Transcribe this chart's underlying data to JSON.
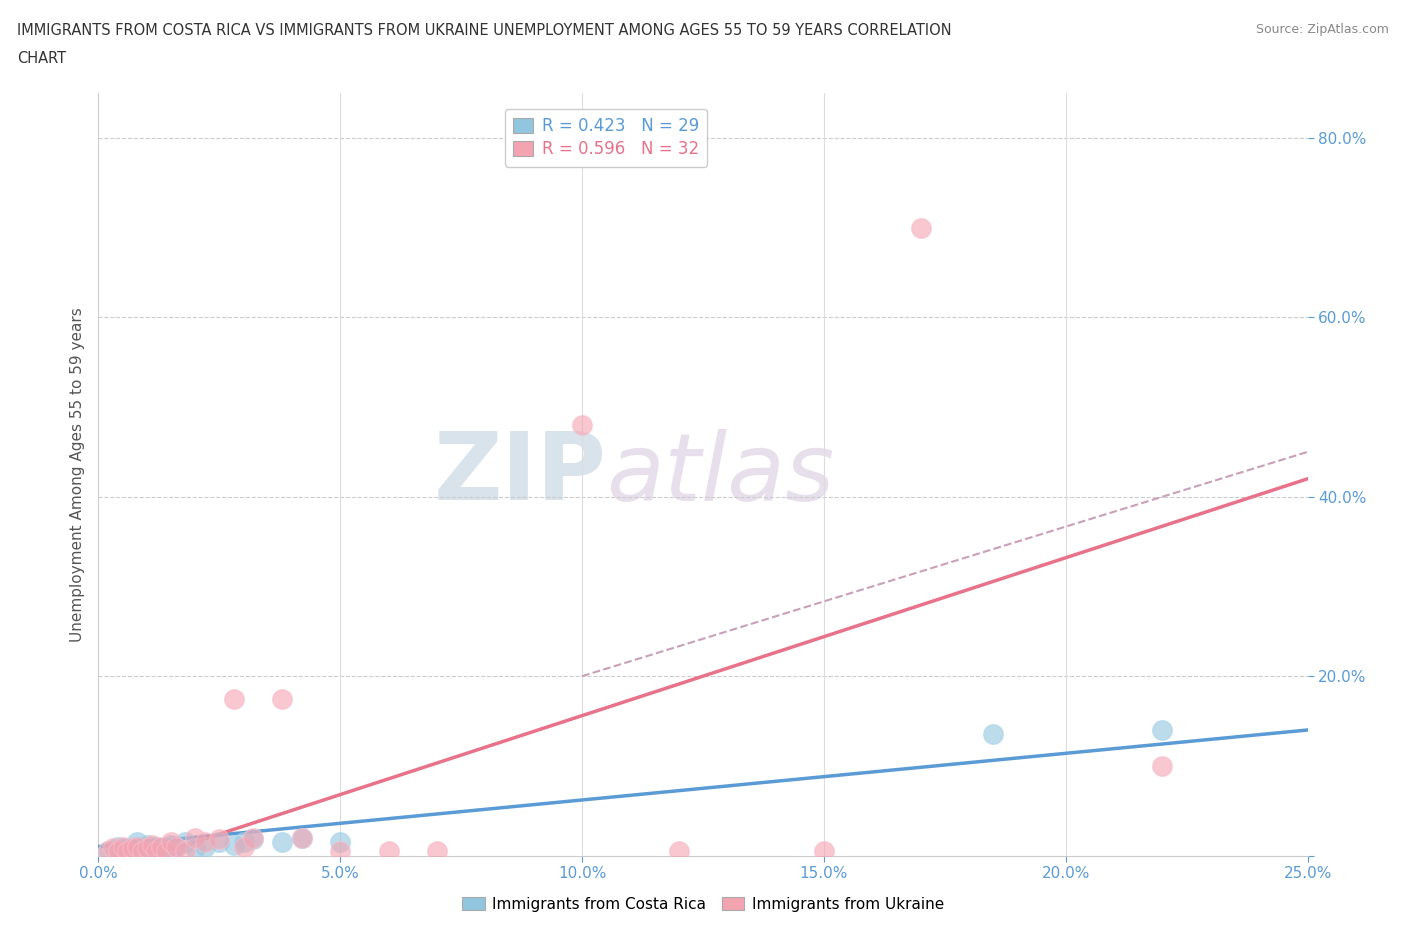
{
  "title_line1": "IMMIGRANTS FROM COSTA RICA VS IMMIGRANTS FROM UKRAINE UNEMPLOYMENT AMONG AGES 55 TO 59 YEARS CORRELATION",
  "title_line2": "CHART",
  "source": "Source: ZipAtlas.com",
  "ylabel": "Unemployment Among Ages 55 to 59 years",
  "xlim": [
    0.0,
    0.25
  ],
  "ylim": [
    0.0,
    0.85
  ],
  "xticks": [
    0.0,
    0.05,
    0.1,
    0.15,
    0.2,
    0.25
  ],
  "xtick_labels": [
    "0.0%",
    "5.0%",
    "10.0%",
    "15.0%",
    "20.0%",
    "25.0%"
  ],
  "yticks": [
    0.0,
    0.2,
    0.4,
    0.6,
    0.8
  ],
  "ytick_labels": [
    "",
    "20.0%",
    "40.0%",
    "60.0%",
    "80.0%"
  ],
  "costa_rica_R": 0.423,
  "costa_rica_N": 29,
  "ukraine_R": 0.596,
  "ukraine_N": 32,
  "costa_rica_color": "#92c5de",
  "ukraine_color": "#f4a3b1",
  "costa_rica_line_color": "#5b9bd5",
  "ukraine_line_color": "#e8728a",
  "watermark_zip": "ZIP",
  "watermark_atlas": "atlas",
  "cr_x": [
    0.002,
    0.004,
    0.005,
    0.006,
    0.007,
    0.008,
    0.008,
    0.009,
    0.01,
    0.01,
    0.011,
    0.012,
    0.013,
    0.014,
    0.015,
    0.015,
    0.016,
    0.018,
    0.02,
    0.022,
    0.025,
    0.028,
    0.03,
    0.032,
    0.038,
    0.042,
    0.05,
    0.185,
    0.22
  ],
  "cr_y": [
    0.005,
    0.01,
    0.005,
    0.008,
    0.005,
    0.01,
    0.015,
    0.005,
    0.008,
    0.012,
    0.005,
    0.01,
    0.005,
    0.008,
    0.005,
    0.012,
    0.01,
    0.015,
    0.008,
    0.01,
    0.015,
    0.012,
    0.015,
    0.018,
    0.015,
    0.02,
    0.015,
    0.135,
    0.14
  ],
  "uk_x": [
    0.002,
    0.003,
    0.004,
    0.005,
    0.006,
    0.007,
    0.008,
    0.009,
    0.01,
    0.011,
    0.012,
    0.013,
    0.014,
    0.015,
    0.016,
    0.018,
    0.02,
    0.022,
    0.025,
    0.028,
    0.03,
    0.032,
    0.038,
    0.042,
    0.05,
    0.06,
    0.07,
    0.1,
    0.12,
    0.15,
    0.17,
    0.22
  ],
  "uk_y": [
    0.005,
    0.008,
    0.005,
    0.01,
    0.005,
    0.008,
    0.01,
    0.005,
    0.008,
    0.012,
    0.005,
    0.01,
    0.005,
    0.015,
    0.01,
    0.005,
    0.02,
    0.015,
    0.018,
    0.175,
    0.01,
    0.02,
    0.175,
    0.02,
    0.005,
    0.005,
    0.005,
    0.48,
    0.005,
    0.005,
    0.7,
    0.1
  ]
}
